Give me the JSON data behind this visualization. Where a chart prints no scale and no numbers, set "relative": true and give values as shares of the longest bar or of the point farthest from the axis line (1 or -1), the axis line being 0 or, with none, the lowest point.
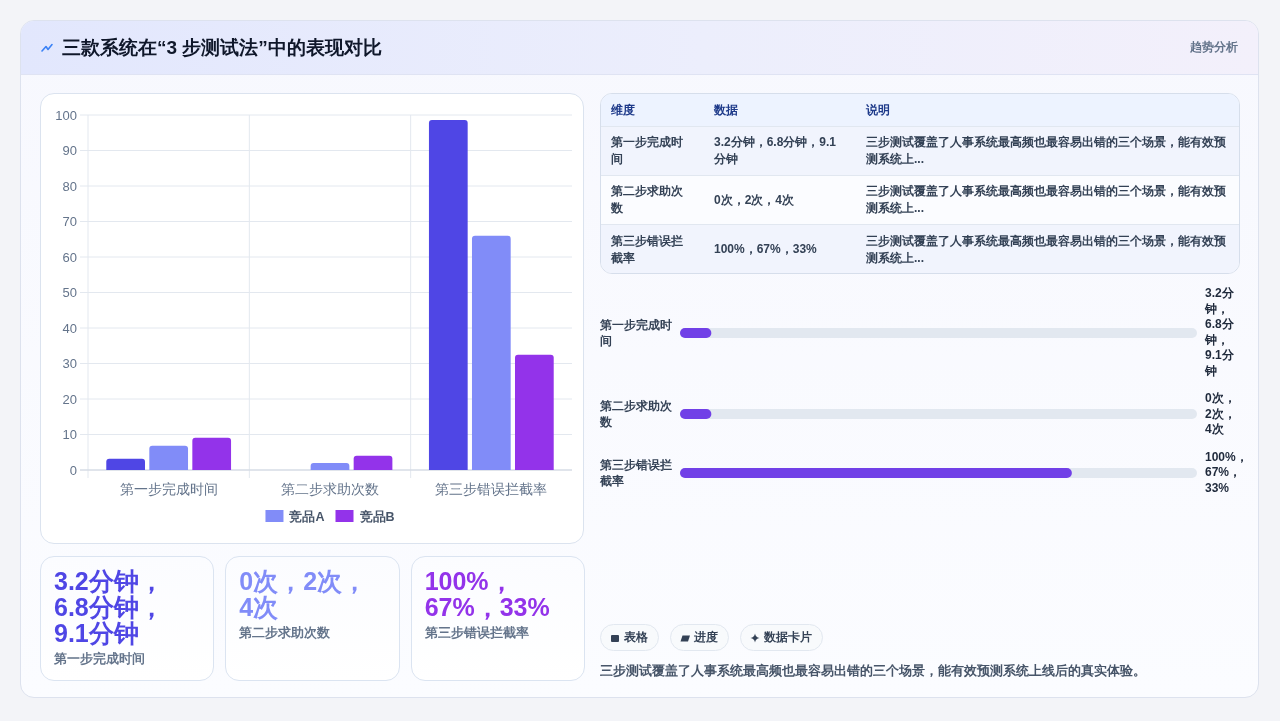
{
  "chart_data": [
    {
      "type": "other",
      "title": "三款系统在“3 步测试法”中的表现对比",
      "annotations": [
        "趋势分析"
      ]
    },
    {
      "type": "bar",
      "categories": [
        "第一步完成时间",
        "第二步求助次数",
        "第三步错误拦截率"
      ],
      "series": [
        {
          "color": "#4f46e5",
          "values": [
            3.2,
            0,
            98.6
          ]
        },
        {
          "name": "竞品A",
          "color": "#818cf8",
          "values": [
            6.8,
            2,
            66
          ]
        },
        {
          "name": "竞品B",
          "color": "#9333ea",
          "values": [
            9.1,
            4,
            32.5
          ]
        }
      ],
      "ylim": [
        0,
        100
      ],
      "yticks": [
        0,
        10,
        20,
        30,
        40,
        50,
        60,
        70,
        80,
        90,
        100
      ],
      "grid": true,
      "legend": "bottom"
    },
    {
      "type": "other",
      "annotations": [
        "维度",
        "数据",
        "说明",
        "第一步完成时间",
        "3.2分钟，6.8分钟，9.1分钟",
        "三步测试覆盖了人事系统最高频也最容易出错的三个场景，能有效预测系统上...",
        "第二步求助次数",
        "0次，2次，4次",
        "三步测试覆盖了人事系统最高频也最容易出错的三个场景，能有效预测系统上...",
        "第三步错误拦截率",
        "100%，67%，33%",
        "三步测试覆盖了人事系统最高频也最容易出错的三个场景，能有效预测系统上..."
      ]
    },
    {
      "type": "bar",
      "orientation": "horizontal",
      "relative": true,
      "categories": [
        "第一步完成时间",
        "第二步求助次数",
        "第三步错误拦截率"
      ],
      "values": [
        0.08,
        0.08,
        1
      ],
      "annotations": [
        "3.2分钟，6.8分钟，9.1分钟",
        "0次，2次，4次",
        "100%，67%，33%"
      ],
      "color": "#7140e7"
    },
    {
      "type": "other",
      "annotations": [
        "3.2分钟，6.8分钟，9.1分钟",
        "第一步完成时间",
        "0次，2次，4次",
        "第二步求助次数",
        "100%，67%，33%",
        "第三步错误拦截率"
      ],
      "colors": [
        "#4f46e5",
        "#818cf8",
        "#9333ea"
      ]
    },
    {
      "type": "other",
      "annotations": [
        "表格",
        "进度",
        "数据卡片",
        "三步测试覆盖了人事系统最高频也最容易出错的三个场景，能有效预测系统上线后的真实体验。"
      ]
    }
  ]
}
